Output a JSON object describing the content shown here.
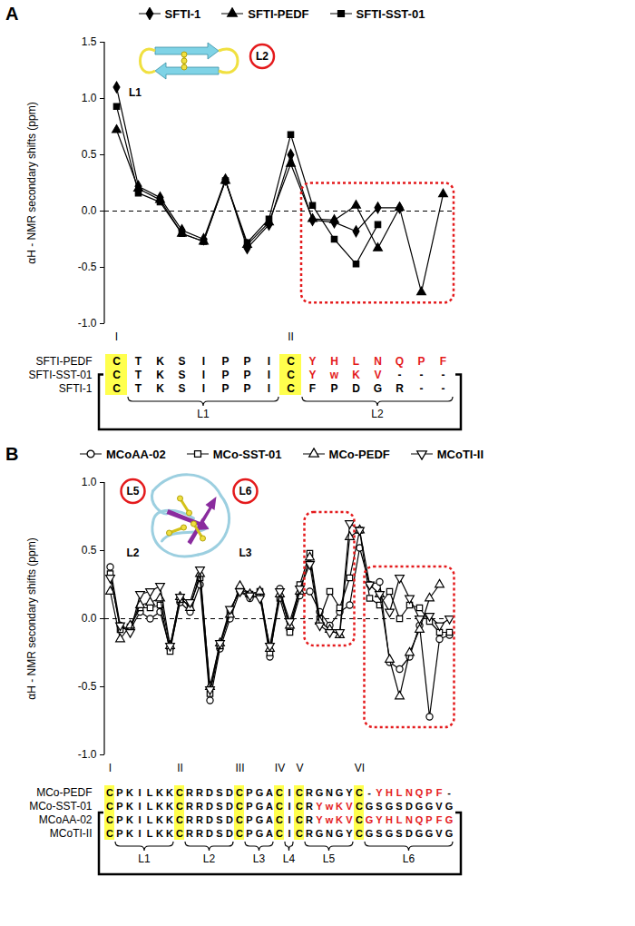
{
  "chart_data": [
    {
      "type": "line",
      "title": "A",
      "ylabel": "αH - NMR secondary shifts (ppm)",
      "categories": [
        "I",
        null,
        null,
        null,
        null,
        null,
        null,
        null,
        "II",
        null,
        null,
        null,
        null,
        null,
        null,
        null
      ],
      "ylim": [
        -1,
        1.5
      ],
      "yticks": [
        {
          "value": -1,
          "label": "-1.0"
        },
        {
          "value": -0.5,
          "label": "-0.5"
        },
        {
          "value": 0,
          "label": "0.0"
        },
        {
          "value": 0.5,
          "label": "0.5"
        },
        {
          "value": 1,
          "label": "1.0"
        },
        {
          "value": 1.5,
          "label": "1.5"
        }
      ],
      "grid": false,
      "tick_labels": true,
      "series": [
        {
          "name": "SFTI-1",
          "color": "#000000",
          "marker": "diamond",
          "values": [
            1.1,
            0.22,
            0.12,
            -0.17,
            -0.25,
            0.28,
            -0.33,
            -0.12,
            0.5,
            -0.08,
            -0.1,
            -0.18,
            0.03,
            0.03,
            null,
            null
          ]
        },
        {
          "name": "SFTI-PEDF",
          "color": "#000000",
          "marker": "triangle",
          "values": [
            0.72,
            0.2,
            0.1,
            -0.2,
            -0.27,
            0.27,
            -0.3,
            -0.1,
            0.42,
            -0.07,
            -0.08,
            0.05,
            -0.33,
            0.03,
            -0.72,
            0.15
          ]
        },
        {
          "name": "SFTI-SST-01",
          "color": "#000000",
          "marker": "square",
          "values": [
            0.93,
            0.16,
            0.08,
            -0.2,
            -0.27,
            0.27,
            -0.28,
            -0.07,
            0.68,
            0.05,
            -0.25,
            -0.47,
            -0.12,
            null,
            null,
            null
          ]
        }
      ],
      "alignment": [
        {
          "name": "SFTI-PEDF",
          "segments": [
            {
              "text": "CTKSIPPIC",
              "color": "#000000"
            },
            {
              "text": "YHLNQPF",
              "color": "#e41a1c"
            }
          ]
        },
        {
          "name": "SFTI-SST-01",
          "segments": [
            {
              "text": "CTKSIPPIC",
              "color": "#000000"
            },
            {
              "text": "YwKV",
              "color": "#e41a1c"
            },
            {
              "text": "---",
              "color": "#000000"
            }
          ]
        },
        {
          "name": "SFTI-1",
          "segments": [
            {
              "text": "CTKSIPPICFPDGR--",
              "color": "#000000"
            }
          ]
        }
      ],
      "loops": [
        {
          "label": "L1",
          "from": 1,
          "to": 7
        },
        {
          "label": "L2",
          "from": 9,
          "to": 15,
          "color": "#e41a1c"
        }
      ],
      "inset_labels": [
        "L1",
        "L2"
      ]
    },
    {
      "type": "line",
      "title": "B",
      "ylabel": "αH - NMR secondary shifts (ppm)",
      "categories": [
        "I",
        null,
        null,
        null,
        null,
        null,
        null,
        "II",
        null,
        null,
        null,
        null,
        null,
        "III",
        null,
        null,
        null,
        "IV",
        null,
        "V",
        null,
        null,
        null,
        null,
        null,
        "VI",
        null,
        null,
        null,
        null,
        null,
        null,
        null,
        null,
        null
      ],
      "ylim": [
        -1,
        1
      ],
      "yticks": [
        {
          "value": -1,
          "label": "-1.0"
        },
        {
          "value": -0.5,
          "label": "-0.5"
        },
        {
          "value": 0,
          "label": "0.0"
        },
        {
          "value": 0.5,
          "label": "0.5"
        },
        {
          "value": 1,
          "label": "1.0"
        }
      ],
      "grid": false,
      "tick_labels": true,
      "series": [
        {
          "name": "MCoAA-02",
          "color": "#000000",
          "marker": "circle-open",
          "values": [
            0.38,
            -0.05,
            -0.08,
            0.05,
            0.0,
            0.05,
            -0.22,
            0.12,
            0.05,
            0.25,
            -0.6,
            -0.22,
            0.0,
            0.2,
            0.15,
            0.17,
            -0.28,
            0.22,
            -0.08,
            0.17,
            0.2,
            0.05,
            -0.05,
            0.05,
            0.1,
            0.52,
            0.25,
            0.27,
            -0.32,
            -0.37,
            -0.28,
            -0.05,
            -0.72,
            -0.15,
            -0.12
          ]
        },
        {
          "name": "MCo-SST-01",
          "color": "#000000",
          "marker": "square-open",
          "values": [
            0.33,
            -0.08,
            -0.06,
            0.08,
            0.08,
            0.1,
            -0.24,
            0.14,
            0.1,
            0.3,
            -0.55,
            -0.2,
            0.05,
            0.22,
            0.18,
            0.2,
            -0.25,
            0.15,
            -0.1,
            0.25,
            0.48,
            0.0,
            0.2,
            0.08,
            0.3,
            0.65,
            0.15,
            0.1,
            0.2,
            0.0,
            0.1,
            0.08,
            -0.02,
            -0.1,
            -0.1
          ]
        },
        {
          "name": "MCo-PEDF",
          "color": "#000000",
          "marker": "triangle-open",
          "values": [
            0.2,
            -0.15,
            -0.05,
            0.1,
            0.12,
            0.15,
            -0.2,
            0.16,
            0.08,
            0.33,
            -0.5,
            -0.18,
            0.03,
            0.24,
            0.18,
            0.2,
            -0.22,
            0.18,
            -0.05,
            0.2,
            0.45,
            -0.02,
            -0.08,
            -0.12,
            0.6,
            0.65,
            null,
            0.18,
            -0.3,
            -0.57,
            -0.25,
            -0.08,
            0.15,
            0.25,
            null
          ]
        },
        {
          "name": "MCoTI-II",
          "color": "#000000",
          "marker": "triangle-down-open",
          "values": [
            0.3,
            -0.05,
            -0.1,
            0.18,
            0.2,
            0.24,
            -0.2,
            0.16,
            0.12,
            0.36,
            -0.52,
            -0.18,
            0.07,
            0.2,
            0.17,
            0.15,
            -0.2,
            0.2,
            -0.02,
            0.22,
            0.4,
            -0.05,
            -0.1,
            -0.1,
            0.7,
            0.65,
            0.25,
            0.18,
            0.05,
            0.3,
            0.15,
            0.0,
            0.02,
            -0.05,
            0.0
          ]
        }
      ],
      "alignment": [
        {
          "name": "MCo-PEDF",
          "segments": [
            {
              "text": "CPKILKKCRRDSDCPGACICRGNGYC-",
              "color": "#000000"
            },
            {
              "text": "YHLNQPF",
              "color": "#e41a1c"
            },
            {
              "text": "-",
              "color": "#000000"
            }
          ]
        },
        {
          "name": "MCo-SST-01",
          "segments": [
            {
              "text": "CPKILKKCRRDSDCPGACICR",
              "color": "#000000"
            },
            {
              "text": "YwKV",
              "color": "#e41a1c"
            },
            {
              "text": "CGSGSDGGVG",
              "color": "#000000"
            }
          ]
        },
        {
          "name": "MCoAA-02",
          "segments": [
            {
              "text": "CPKILKKCRRDSDCPGACICR",
              "color": "#000000"
            },
            {
              "text": "YwKV",
              "color": "#e41a1c"
            },
            {
              "text": "C",
              "color": "#000000"
            },
            {
              "text": "GYHLNQPFG",
              "color": "#e41a1c"
            }
          ]
        },
        {
          "name": "MCoTI-II",
          "segments": [
            {
              "text": "CPKILKKCRRDSDCPGACICRGNGYCGSGSDGGVG",
              "color": "#000000"
            }
          ]
        }
      ],
      "loops": [
        {
          "label": "L1",
          "from": 1,
          "to": 6
        },
        {
          "label": "L2",
          "from": 8,
          "to": 12
        },
        {
          "label": "L3",
          "from": 14,
          "to": 16
        },
        {
          "label": "L4",
          "from": 18,
          "to": 18
        },
        {
          "label": "L5",
          "from": 20,
          "to": 24,
          "color": "#e41a1c"
        },
        {
          "label": "L6",
          "from": 26,
          "to": 34,
          "color": "#e41a1c"
        }
      ],
      "inset_labels": [
        "L5",
        "L6",
        "L2",
        "L3"
      ]
    }
  ]
}
